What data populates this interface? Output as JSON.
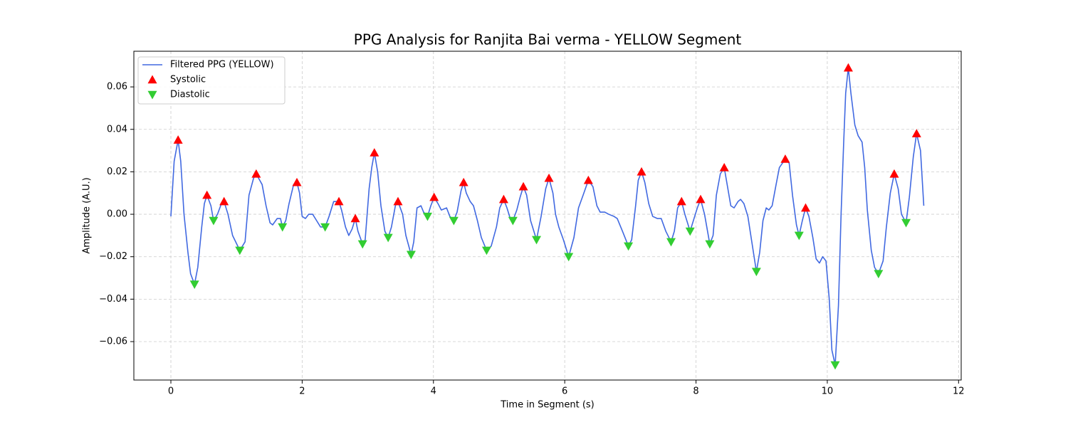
{
  "chart_data": {
    "type": "line",
    "title": "PPG Analysis for Ranjita Bai verma - YELLOW Segment",
    "xlabel": "Time in Segment (s)",
    "ylabel": "Amplitude (A.U.)",
    "xlim": [
      -0.564,
      12.04
    ],
    "ylim": [
      -0.0781,
      0.0768
    ],
    "xticks": [
      0,
      2,
      4,
      6,
      8,
      10,
      12
    ],
    "yticks": [
      {
        "value": -0.06,
        "label": "−0.06"
      },
      {
        "value": -0.04,
        "label": "−0.04"
      },
      {
        "value": -0.02,
        "label": "−0.02"
      },
      {
        "value": 0,
        "label": "0.00"
      },
      0.02,
      0.04,
      0.06
    ],
    "grid": true,
    "legend": "upper left",
    "series": [
      {
        "name": "Filtered PPG (YELLOW)",
        "type": "line",
        "color": "#4169e1",
        "x": [
          0,
          0.05,
          0.11,
          0.15,
          0.2,
          0.26,
          0.3,
          0.36,
          0.41,
          0.47,
          0.51,
          0.55,
          0.61,
          0.65,
          0.71,
          0.77,
          0.81,
          0.87,
          0.94,
          1.05,
          1.13,
          1.19,
          1.26,
          1.3,
          1.39,
          1.45,
          1.51,
          1.55,
          1.62,
          1.67,
          1.7,
          1.75,
          1.8,
          1.87,
          1.92,
          1.96,
          2.0,
          2.05,
          2.1,
          2.16,
          2.22,
          2.28,
          2.35,
          2.41,
          2.48,
          2.56,
          2.6,
          2.66,
          2.71,
          2.76,
          2.81,
          2.85,
          2.92,
          2.96,
          3.02,
          3.06,
          3.1,
          3.15,
          3.2,
          3.26,
          3.31,
          3.36,
          3.42,
          3.46,
          3.53,
          3.58,
          3.66,
          3.7,
          3.75,
          3.81,
          3.85,
          3.91,
          3.96,
          4.01,
          4.07,
          4.12,
          4.2,
          4.25,
          4.31,
          4.36,
          4.42,
          4.46,
          4.5,
          4.56,
          4.61,
          4.67,
          4.73,
          4.81,
          4.88,
          4.96,
          5.01,
          5.07,
          5.12,
          5.17,
          5.21,
          5.27,
          5.32,
          5.37,
          5.42,
          5.48,
          5.57,
          5.64,
          5.71,
          5.76,
          5.82,
          5.86,
          5.91,
          5.98,
          6.06,
          6.14,
          6.21,
          6.28,
          6.36,
          6.43,
          6.49,
          6.54,
          6.61,
          6.67,
          6.75,
          6.8,
          6.88,
          6.97,
          7.02,
          7.08,
          7.12,
          7.17,
          7.22,
          7.28,
          7.34,
          7.41,
          7.47,
          7.54,
          7.62,
          7.67,
          7.72,
          7.78,
          7.83,
          7.91,
          7.96,
          8.02,
          8.07,
          8.13,
          8.21,
          8.26,
          8.31,
          8.37,
          8.43,
          8.48,
          8.53,
          8.58,
          8.64,
          8.68,
          8.73,
          8.79,
          8.84,
          8.92,
          8.97,
          9.02,
          9.07,
          9.11,
          9.16,
          9.22,
          9.27,
          9.36,
          9.42,
          9.47,
          9.53,
          9.57,
          9.62,
          9.67,
          9.72,
          9.78,
          9.83,
          9.88,
          9.93,
          9.98,
          10.03,
          10.07,
          10.12,
          10.17,
          10.21,
          10.25,
          10.28,
          10.32,
          10.36,
          10.42,
          10.47,
          10.53,
          10.57,
          10.61,
          10.67,
          10.72,
          10.78,
          10.85,
          10.9,
          10.96,
          11.02,
          11.08,
          11.13,
          11.2,
          11.25,
          11.31,
          11.36,
          11.42,
          11.47
        ],
        "y": [
          -0.001,
          0.025,
          0.035,
          0.025,
          0.0,
          -0.018,
          -0.028,
          -0.033,
          -0.025,
          -0.006,
          0.005,
          0.009,
          0.004,
          -0.003,
          0.0,
          0.005,
          0.006,
          0.0,
          -0.01,
          -0.017,
          -0.013,
          0.009,
          0.017,
          0.019,
          0.014,
          0.004,
          -0.004,
          -0.005,
          -0.002,
          -0.002,
          -0.006,
          -0.003,
          0.005,
          0.014,
          0.015,
          0.01,
          -0.001,
          -0.002,
          0.0,
          0.0,
          -0.003,
          -0.006,
          -0.006,
          -0.001,
          0.006,
          0.006,
          0.002,
          -0.006,
          -0.01,
          -0.007,
          -0.002,
          -0.008,
          -0.014,
          -0.012,
          0.012,
          0.022,
          0.029,
          0.02,
          0.004,
          -0.008,
          -0.011,
          -0.006,
          0.004,
          0.006,
          0.0,
          -0.01,
          -0.019,
          -0.013,
          0.003,
          0.004,
          0.001,
          -0.001,
          0.004,
          0.008,
          0.005,
          0.002,
          0.003,
          -0.001,
          -0.003,
          0.001,
          0.011,
          0.015,
          0.01,
          0.006,
          0.004,
          -0.003,
          -0.011,
          -0.017,
          -0.015,
          -0.006,
          0.003,
          0.007,
          0.003,
          -0.002,
          -0.003,
          0.002,
          0.008,
          0.013,
          0.009,
          -0.003,
          -0.012,
          -0.001,
          0.012,
          0.017,
          0.01,
          0.0,
          -0.006,
          -0.012,
          -0.02,
          -0.011,
          0.003,
          0.009,
          0.016,
          0.013,
          0.004,
          0.001,
          0.001,
          0.0,
          -0.001,
          -0.002,
          -0.008,
          -0.015,
          -0.012,
          0.004,
          0.016,
          0.02,
          0.015,
          0.005,
          -0.001,
          -0.002,
          -0.002,
          -0.008,
          -0.013,
          -0.008,
          0.003,
          0.006,
          0.0,
          -0.008,
          -0.003,
          0.003,
          0.007,
          0.0,
          -0.014,
          -0.01,
          0.009,
          0.019,
          0.022,
          0.013,
          0.004,
          0.003,
          0.006,
          0.007,
          0.005,
          -0.001,
          -0.011,
          -0.027,
          -0.018,
          -0.003,
          0.003,
          0.002,
          0.004,
          0.014,
          0.022,
          0.026,
          0.024,
          0.009,
          -0.005,
          -0.01,
          -0.003,
          0.003,
          -0.001,
          -0.011,
          -0.021,
          -0.023,
          -0.02,
          -0.022,
          -0.04,
          -0.064,
          -0.071,
          -0.043,
          0.0,
          0.034,
          0.057,
          0.069,
          0.057,
          0.042,
          0.037,
          0.034,
          0.022,
          0.002,
          -0.017,
          -0.025,
          -0.028,
          -0.022,
          -0.006,
          0.01,
          0.019,
          0.012,
          0.0,
          -0.004,
          0.008,
          0.027,
          0.038,
          0.03,
          0.004
        ]
      },
      {
        "name": "Systolic",
        "type": "scatter",
        "marker": "triangle-up",
        "color": "#ff0000",
        "x": [
          0.11,
          0.55,
          0.81,
          1.3,
          1.92,
          2.56,
          2.81,
          3.1,
          3.46,
          4.01,
          4.46,
          5.07,
          5.37,
          5.76,
          6.36,
          7.17,
          7.78,
          8.07,
          8.43,
          9.36,
          9.67,
          10.32,
          11.02,
          11.36
        ],
        "y": [
          0.035,
          0.009,
          0.006,
          0.019,
          0.015,
          0.006,
          -0.002,
          0.029,
          0.006,
          0.008,
          0.015,
          0.007,
          0.013,
          0.017,
          0.016,
          0.02,
          0.006,
          0.007,
          0.022,
          0.026,
          0.003,
          0.069,
          0.019,
          0.038
        ]
      },
      {
        "name": "Diastolic",
        "type": "scatter",
        "marker": "triangle-down",
        "color": "#32cd32",
        "x": [
          0.36,
          0.65,
          1.05,
          1.7,
          2.35,
          2.92,
          3.31,
          3.66,
          3.91,
          4.31,
          4.81,
          5.21,
          5.57,
          6.06,
          6.97,
          7.62,
          7.91,
          8.21,
          8.92,
          9.57,
          10.12,
          10.78,
          11.2
        ],
        "y": [
          -0.033,
          -0.003,
          -0.017,
          -0.006,
          -0.006,
          -0.014,
          -0.011,
          -0.019,
          -0.001,
          -0.003,
          -0.017,
          -0.003,
          -0.012,
          -0.02,
          -0.015,
          -0.013,
          -0.008,
          -0.014,
          -0.027,
          -0.01,
          -0.071,
          -0.028,
          -0.004
        ]
      }
    ]
  }
}
